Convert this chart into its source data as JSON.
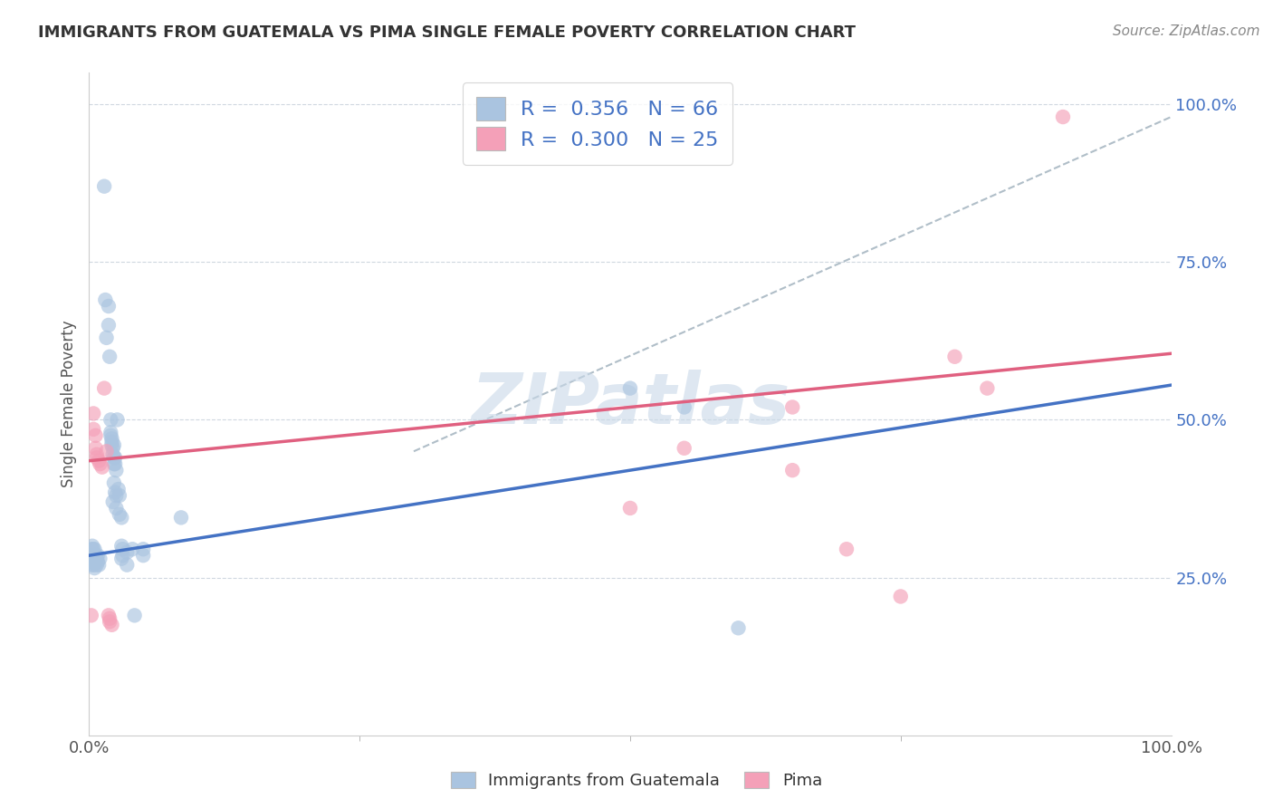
{
  "title": "IMMIGRANTS FROM GUATEMALA VS PIMA SINGLE FEMALE POVERTY CORRELATION CHART",
  "source": "Source: ZipAtlas.com",
  "ylabel": "Single Female Poverty",
  "legend_label1": "Immigrants from Guatemala",
  "legend_label2": "Pima",
  "R1": 0.356,
  "N1": 66,
  "R2": 0.3,
  "N2": 25,
  "color_blue": "#aac4e0",
  "color_pink": "#f4a0b8",
  "line_blue": "#4472c4",
  "line_pink": "#e06080",
  "line_dashed": "#b0bec8",
  "blue_points": [
    [
      0.002,
      0.295
    ],
    [
      0.002,
      0.285
    ],
    [
      0.003,
      0.3
    ],
    [
      0.003,
      0.28
    ],
    [
      0.003,
      0.275
    ],
    [
      0.003,
      0.27
    ],
    [
      0.004,
      0.295
    ],
    [
      0.004,
      0.28
    ],
    [
      0.004,
      0.275
    ],
    [
      0.004,
      0.27
    ],
    [
      0.005,
      0.295
    ],
    [
      0.005,
      0.285
    ],
    [
      0.005,
      0.275
    ],
    [
      0.005,
      0.265
    ],
    [
      0.006,
      0.285
    ],
    [
      0.006,
      0.275
    ],
    [
      0.007,
      0.28
    ],
    [
      0.007,
      0.27
    ],
    [
      0.008,
      0.285
    ],
    [
      0.008,
      0.275
    ],
    [
      0.009,
      0.27
    ],
    [
      0.01,
      0.28
    ],
    [
      0.014,
      0.87
    ],
    [
      0.015,
      0.69
    ],
    [
      0.016,
      0.63
    ],
    [
      0.018,
      0.68
    ],
    [
      0.018,
      0.65
    ],
    [
      0.019,
      0.6
    ],
    [
      0.02,
      0.5
    ],
    [
      0.02,
      0.48
    ],
    [
      0.02,
      0.475
    ],
    [
      0.021,
      0.47
    ],
    [
      0.021,
      0.465
    ],
    [
      0.021,
      0.46
    ],
    [
      0.022,
      0.455
    ],
    [
      0.022,
      0.445
    ],
    [
      0.022,
      0.37
    ],
    [
      0.023,
      0.46
    ],
    [
      0.023,
      0.44
    ],
    [
      0.023,
      0.43
    ],
    [
      0.023,
      0.4
    ],
    [
      0.024,
      0.44
    ],
    [
      0.024,
      0.43
    ],
    [
      0.024,
      0.385
    ],
    [
      0.025,
      0.42
    ],
    [
      0.025,
      0.38
    ],
    [
      0.025,
      0.36
    ],
    [
      0.026,
      0.5
    ],
    [
      0.027,
      0.39
    ],
    [
      0.028,
      0.38
    ],
    [
      0.028,
      0.35
    ],
    [
      0.03,
      0.345
    ],
    [
      0.03,
      0.3
    ],
    [
      0.03,
      0.28
    ],
    [
      0.031,
      0.295
    ],
    [
      0.031,
      0.285
    ],
    [
      0.035,
      0.29
    ],
    [
      0.035,
      0.27
    ],
    [
      0.04,
      0.295
    ],
    [
      0.042,
      0.19
    ],
    [
      0.05,
      0.295
    ],
    [
      0.05,
      0.285
    ],
    [
      0.085,
      0.345
    ],
    [
      0.5,
      0.55
    ],
    [
      0.55,
      0.52
    ],
    [
      0.6,
      0.17
    ]
  ],
  "pink_points": [
    [
      0.002,
      0.19
    ],
    [
      0.004,
      0.51
    ],
    [
      0.004,
      0.485
    ],
    [
      0.006,
      0.475
    ],
    [
      0.006,
      0.455
    ],
    [
      0.007,
      0.445
    ],
    [
      0.007,
      0.44
    ],
    [
      0.009,
      0.435
    ],
    [
      0.01,
      0.43
    ],
    [
      0.012,
      0.425
    ],
    [
      0.014,
      0.55
    ],
    [
      0.016,
      0.45
    ],
    [
      0.018,
      0.19
    ],
    [
      0.019,
      0.185
    ],
    [
      0.019,
      0.18
    ],
    [
      0.021,
      0.175
    ],
    [
      0.5,
      0.36
    ],
    [
      0.55,
      0.455
    ],
    [
      0.65,
      0.52
    ],
    [
      0.65,
      0.42
    ],
    [
      0.7,
      0.295
    ],
    [
      0.75,
      0.22
    ],
    [
      0.8,
      0.6
    ],
    [
      0.83,
      0.55
    ],
    [
      0.9,
      0.98
    ]
  ],
  "blue_line": [
    0.0,
    1.0
  ],
  "blue_line_y": [
    0.285,
    0.555
  ],
  "pink_line": [
    0.0,
    1.0
  ],
  "pink_line_y": [
    0.435,
    0.605
  ],
  "dashed_line": [
    0.3,
    1.0
  ],
  "dashed_line_y": [
    0.45,
    0.98
  ],
  "xlim": [
    0.0,
    1.0
  ],
  "ylim": [
    0.0,
    1.05
  ],
  "yticks": [
    0.0,
    0.25,
    0.5,
    0.75,
    1.0
  ],
  "ytick_labels": [
    "",
    "25.0%",
    "50.0%",
    "75.0%",
    "100.0%"
  ],
  "background_color": "#ffffff",
  "watermark_text": "ZIPatlas",
  "watermark_color": "#c8d8e8"
}
